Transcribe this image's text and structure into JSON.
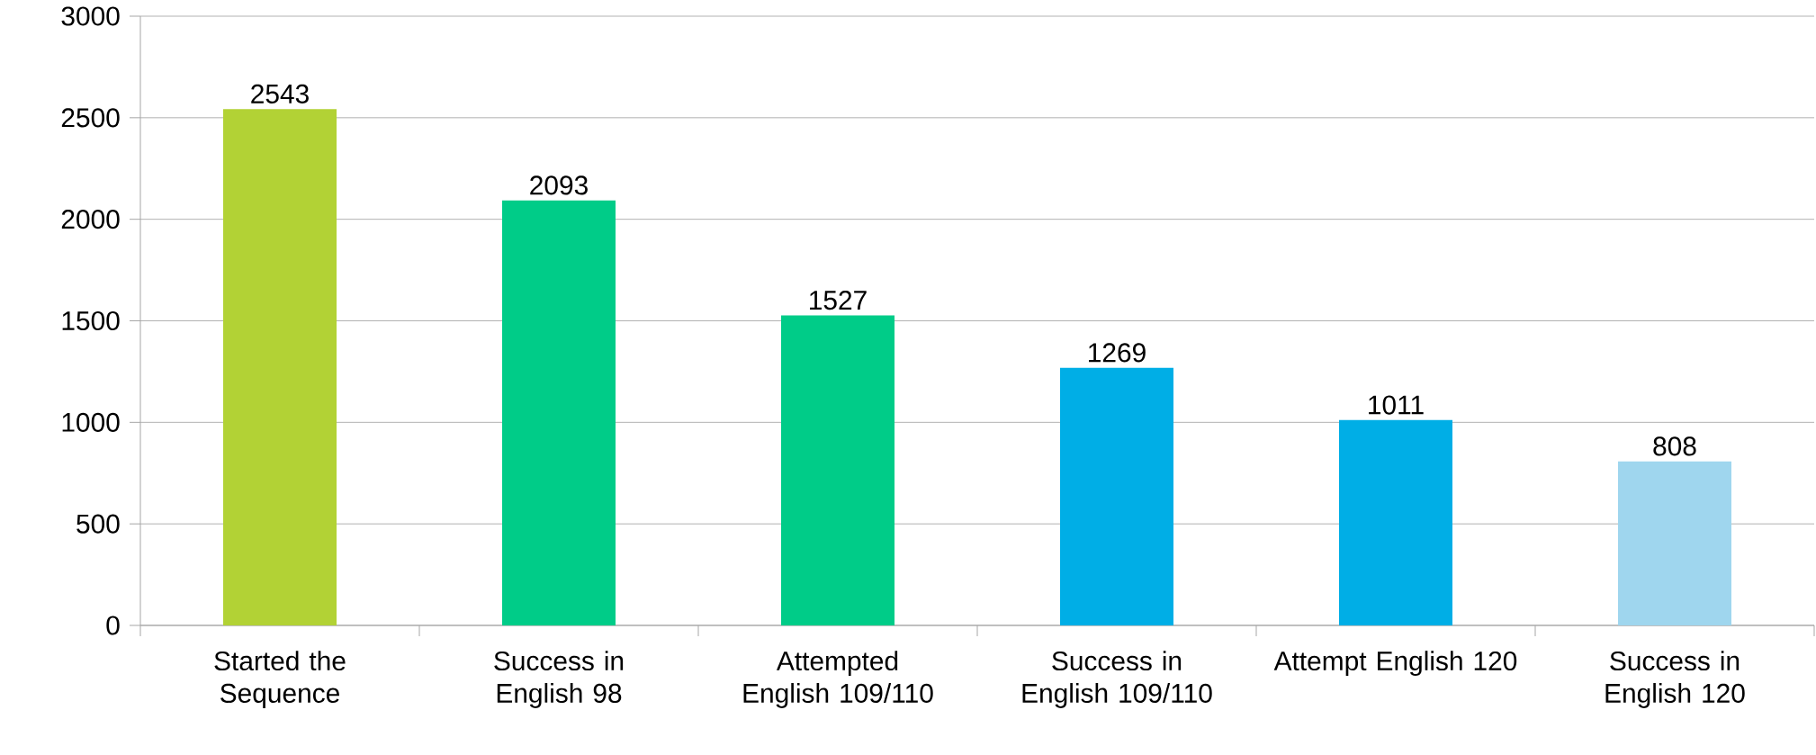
{
  "chart_data": {
    "type": "bar",
    "categories": [
      "Started the Sequence",
      "Success in English 98",
      "Attempted English 109/110",
      "Success in English 109/110",
      "Attempt English 120",
      "Success in English 120"
    ],
    "values": [
      2543,
      2093,
      1527,
      1269,
      1011,
      808
    ],
    "colors": [
      "#b2d235",
      "#00cc88",
      "#00cc88",
      "#00aee6",
      "#00aee6",
      "#9fd6ee"
    ],
    "ylim": [
      0,
      3000
    ],
    "yticks": [
      0,
      500,
      1000,
      1500,
      2000,
      2500,
      3000
    ],
    "grid": "y",
    "data_labels": true
  }
}
